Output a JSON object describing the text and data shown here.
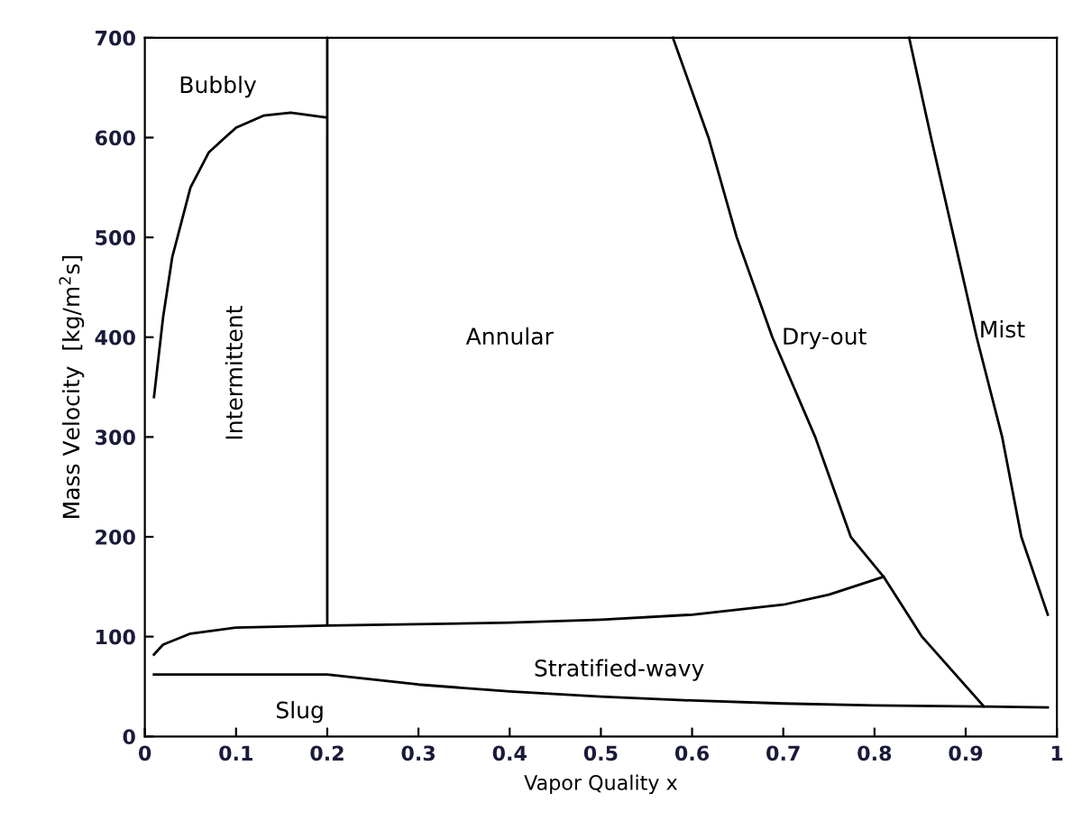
{
  "chart_data": {
    "type": "line",
    "xlabel": "Vapor Quality x",
    "ylabel": "Mass Velocity  [kg/m$^{2}$s]",
    "xlim": [
      0,
      1
    ],
    "ylim": [
      0,
      700
    ],
    "xticks": [
      0,
      0.1,
      0.2,
      0.3,
      0.4,
      0.5,
      0.6,
      0.7,
      0.8,
      0.9,
      1
    ],
    "yticks": [
      0,
      100,
      200,
      300,
      400,
      500,
      600,
      700
    ],
    "grid": false,
    "legend": false,
    "marker": "none",
    "line_style": "solid",
    "series": [
      {
        "color": "#000000",
        "x": [
          0.01,
          0.02,
          0.03,
          0.05,
          0.07,
          0.1,
          0.13,
          0.16,
          0.2,
          0.2,
          0.2
        ],
        "values": [
          340,
          420,
          480,
          550,
          585,
          610,
          622,
          625,
          620,
          700,
          112
        ]
      },
      {
        "color": "#000000",
        "x": [
          0.01,
          0.02,
          0.05,
          0.1,
          0.2,
          0.4,
          0.5,
          0.6,
          0.7,
          0.75,
          0.8,
          0.81
        ],
        "values": [
          82,
          92,
          103,
          109,
          111,
          114,
          117,
          122,
          132,
          142,
          157,
          160
        ]
      },
      {
        "color": "#000000",
        "x": [
          0.579,
          0.618,
          0.649,
          0.688,
          0.735,
          0.774,
          0.81,
          0.852,
          0.92
        ],
        "values": [
          700,
          600,
          500,
          400,
          300,
          200,
          160,
          100,
          30
        ]
      },
      {
        "color": "#000000",
        "x": [
          0.838,
          0.862,
          0.887,
          0.912,
          0.94,
          0.961,
          0.99
        ],
        "values": [
          700,
          600,
          500,
          400,
          300,
          200,
          122
        ]
      },
      {
        "color": "#000000",
        "x": [
          0.01,
          0.2,
          0.3,
          0.4,
          0.5,
          0.6,
          0.7,
          0.8,
          0.92,
          0.99
        ],
        "values": [
          62,
          62,
          52,
          45,
          40,
          36,
          33,
          31,
          30,
          29
        ]
      }
    ],
    "annotations": [
      "Bubbly",
      "Intermittent",
      "Annular",
      "Dry-out",
      "Mist",
      "Stratified-wavy",
      "Slug"
    ]
  }
}
